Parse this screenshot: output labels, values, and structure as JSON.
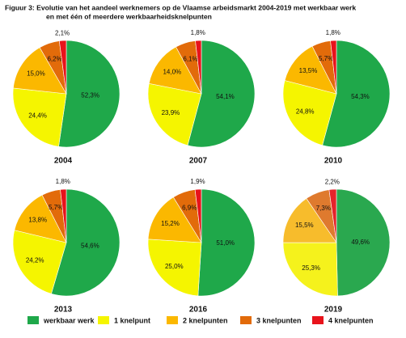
{
  "figure_title_lines": [
    "Figuur 3: Evolutie van het aandeel werknemers op de Vlaamse arbeidsmarkt 2004-2019 met werkbaar werk",
    "en met één of meerdere werkbaarheidsknelpunten"
  ],
  "chart_data": [
    {
      "type": "pie",
      "title": "2004",
      "categories": [
        "werkbaar werk",
        "1 knelpunt",
        "2 knelpunten",
        "3 knelpunten",
        "4 knelpunten"
      ],
      "colors": [
        "#1fa84a",
        "#f5f500",
        "#fbb800",
        "#e26b0a",
        "#e8131b"
      ],
      "values": [
        52.3,
        24.4,
        15.0,
        6.2,
        2.1
      ],
      "value_labels": [
        "52,3%",
        "24,4%",
        "15,0%",
        "6,2%",
        "2,1%"
      ]
    },
    {
      "type": "pie",
      "title": "2007",
      "categories": [
        "werkbaar werk",
        "1 knelpunt",
        "2 knelpunten",
        "3 knelpunten",
        "4 knelpunten"
      ],
      "colors": [
        "#1fa84a",
        "#f5f500",
        "#fbb800",
        "#e26b0a",
        "#e8131b"
      ],
      "values": [
        54.1,
        23.9,
        14.0,
        6.1,
        1.8
      ],
      "value_labels": [
        "54,1%",
        "23,9%",
        "14,0%",
        "6,1%",
        "1,8%"
      ]
    },
    {
      "type": "pie",
      "title": "2010",
      "categories": [
        "werkbaar werk",
        "1 knelpunt",
        "2 knelpunten",
        "3 knelpunten",
        "4 knelpunten"
      ],
      "colors": [
        "#1fa84a",
        "#f5f500",
        "#fbb800",
        "#e26b0a",
        "#e8131b"
      ],
      "values": [
        54.3,
        24.8,
        13.5,
        5.7,
        1.8
      ],
      "value_labels": [
        "54,3%",
        "24,8%",
        "13,5%",
        "5,7%",
        "1,8%"
      ]
    },
    {
      "type": "pie",
      "title": "2013",
      "categories": [
        "werkbaar werk",
        "1 knelpunt",
        "2 knelpunten",
        "3 knelpunten",
        "4 knelpunten"
      ],
      "colors": [
        "#1fa84a",
        "#f5f500",
        "#fbb800",
        "#e26b0a",
        "#e8131b"
      ],
      "values": [
        54.6,
        24.2,
        13.8,
        5.7,
        1.8
      ],
      "value_labels": [
        "54,6%",
        "24,2%",
        "13,8%",
        "5,7%",
        "1,8%"
      ]
    },
    {
      "type": "pie",
      "title": "2016",
      "categories": [
        "werkbaar werk",
        "1 knelpunt",
        "2 knelpunten",
        "3 knelpunten",
        "4 knelpunten"
      ],
      "colors": [
        "#1fa84a",
        "#f5f500",
        "#fbb800",
        "#e26b0a",
        "#e8131b"
      ],
      "values": [
        51.0,
        25.0,
        15.2,
        6.9,
        1.9
      ],
      "value_labels": [
        "51,0%",
        "25,0%",
        "15,2%",
        "6,9%",
        "1,9%"
      ]
    },
    {
      "type": "pie",
      "title": "2019",
      "categories": [
        "werkbaar werk",
        "1 knelpunt",
        "2 knelpunten",
        "3 knelpunten",
        "4 knelpunten"
      ],
      "colors": [
        "#2aa84f",
        "#f5f21c",
        "#f7bc2c",
        "#df7a2e",
        "#e5232b"
      ],
      "values": [
        49.6,
        25.3,
        15.5,
        7.3,
        2.2
      ],
      "value_labels": [
        "49,6%",
        "25,3%",
        "15,5%",
        "7,3%",
        "2,2%"
      ]
    }
  ]
}
